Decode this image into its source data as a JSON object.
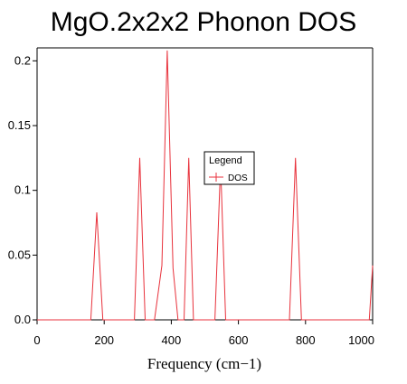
{
  "chart_data": {
    "type": "line",
    "title": "MgO.2x2x2 Phonon DOS",
    "xlabel": "Frequency (cm−1)",
    "ylabel": "",
    "xlim": [
      0,
      1000
    ],
    "ylim": [
      0,
      0.21
    ],
    "x_ticks": [
      0,
      200,
      400,
      600,
      800,
      1000
    ],
    "x_tick_labels": [
      "0",
      "200",
      "400",
      "600",
      "800",
      "1000"
    ],
    "y_ticks": [
      0.0,
      0.05,
      0.1,
      0.15,
      0.2
    ],
    "y_tick_labels": [
      "0.0",
      "0.05",
      "0.1",
      "0.15",
      "0.2"
    ],
    "grid": false,
    "legend": {
      "title": "Legend",
      "placement": "center",
      "entries": [
        "DOS"
      ]
    },
    "series": [
      {
        "name": "DOS",
        "color": "#e8323c",
        "x": [
          0,
          160,
          178,
          196,
          290,
          306,
          322,
          350,
          372,
          388,
          405,
          420,
          438,
          452,
          466,
          530,
          547,
          562,
          752,
          770,
          788,
          990,
          1000
        ],
        "y": [
          0,
          0,
          0.083,
          0,
          0,
          0.125,
          0,
          0,
          0.042,
          0.208,
          0.04,
          0,
          0,
          0.125,
          0,
          0,
          0.12,
          0,
          0,
          0.125,
          0,
          0,
          0.042
        ]
      }
    ]
  }
}
